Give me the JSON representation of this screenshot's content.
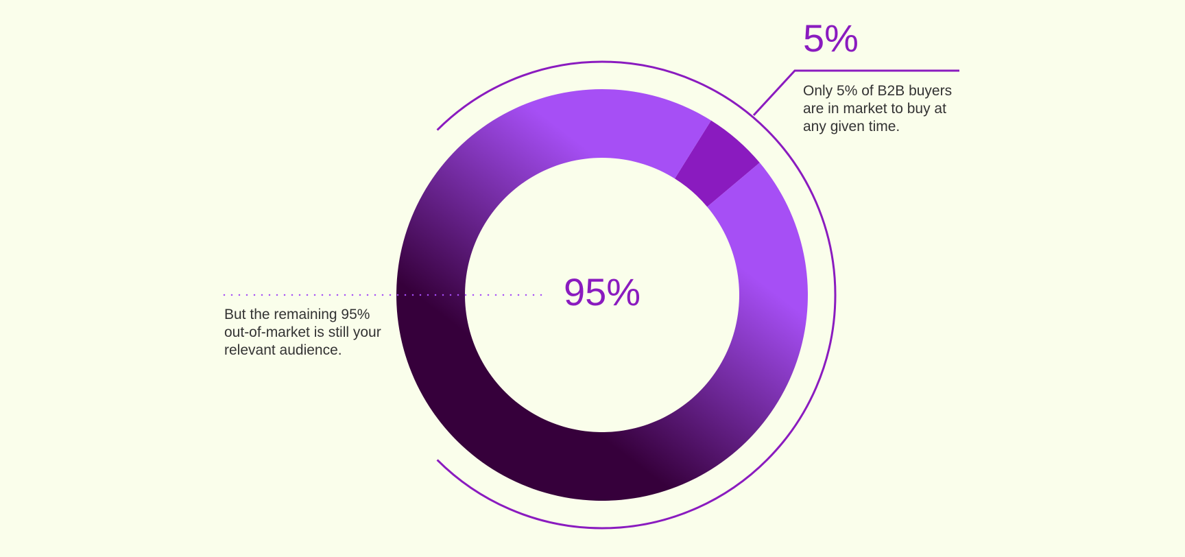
{
  "chart_data": {
    "type": "pie",
    "values": [
      5,
      95
    ],
    "value_labels": [
      "5%",
      "95%"
    ],
    "colors": [
      "#8a1bbf",
      "#a64ff5"
    ],
    "annotations": [
      "Only 5% of B2B buyers are in market to buy at any given time.",
      "But the remaining 95% out-of-market is still your relevant audience."
    ]
  }
}
